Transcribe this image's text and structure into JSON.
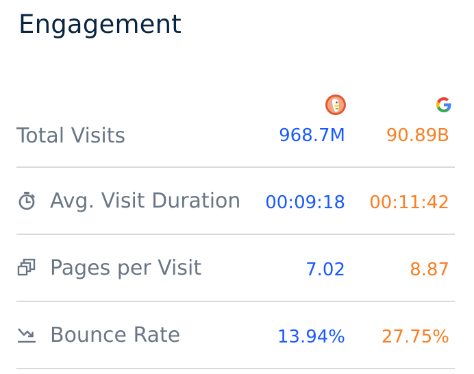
{
  "header": {
    "title": "Engagement"
  },
  "sites": [
    {
      "icon": "duckduckgo-logo-icon",
      "color": "#195afe"
    },
    {
      "icon": "google-logo-icon",
      "color": "#fa7e23"
    }
  ],
  "metrics": [
    {
      "label": "Total Visits",
      "icon": null,
      "site_a": "968.7M",
      "site_b": "90.89B"
    },
    {
      "label": "Avg. Visit Duration",
      "icon": "stopwatch-icon",
      "site_a": "00:09:18",
      "site_b": "00:11:42"
    },
    {
      "label": "Pages per Visit",
      "icon": "pages-stack-icon",
      "site_a": "7.02",
      "site_b": "8.87"
    },
    {
      "label": "Bounce Rate",
      "icon": "bounce-arrow-icon",
      "site_a": "13.94%",
      "site_b": "27.75%"
    }
  ],
  "colors": {
    "title": "#092540",
    "label": "#6a7685",
    "site_a_value": "#195afe",
    "site_b_value": "#fa7e23",
    "divider": "#d6dbe0"
  }
}
